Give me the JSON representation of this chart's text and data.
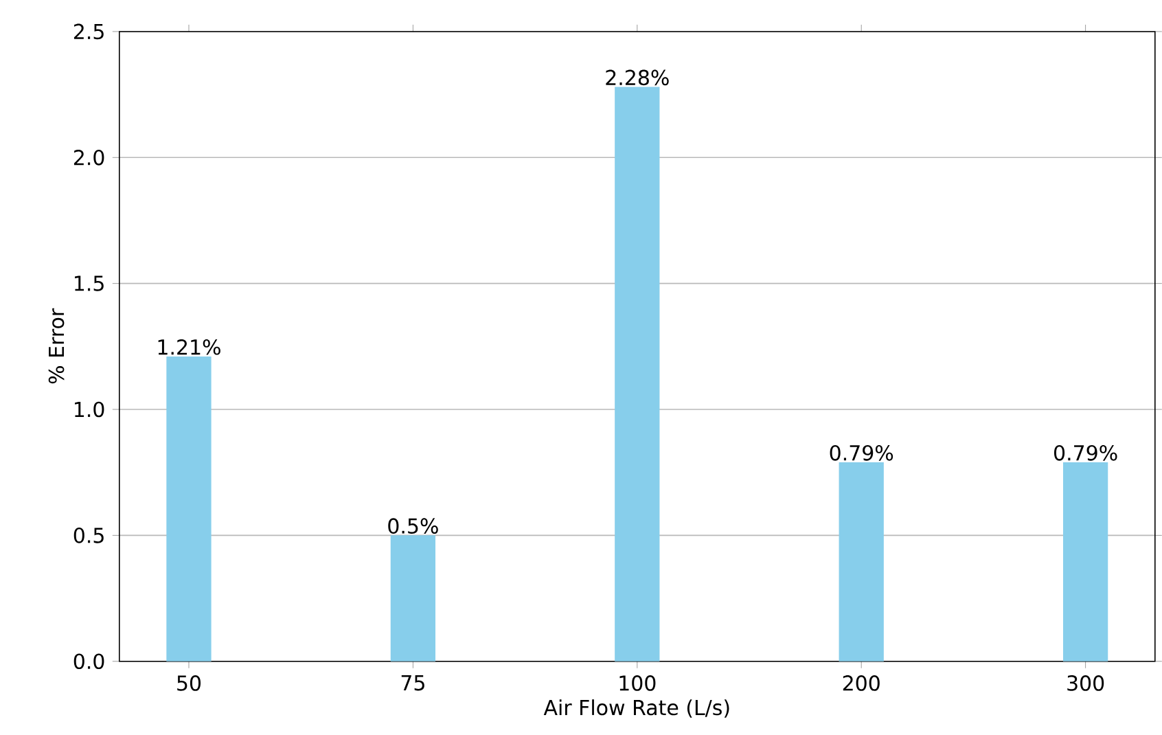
{
  "chart_data": {
    "type": "bar",
    "xlabel": "Air Flow Rate (L/s)",
    "ylabel": "% Error",
    "categories": [
      "50",
      "75",
      "100",
      "200",
      "300"
    ],
    "values": [
      1.21,
      0.5,
      2.28,
      0.79,
      0.79
    ],
    "value_labels": [
      "1.21%",
      "0.5%",
      "2.28%",
      "0.79%",
      "0.79%"
    ],
    "color": "#87ceeb",
    "ylim": [
      0,
      2.5
    ],
    "yticks": [
      {
        "value": 0,
        "label": "0.0"
      },
      0.5,
      {
        "value": 1,
        "label": "1.0"
      },
      1.5,
      {
        "value": 2,
        "label": "2.0"
      },
      2.5
    ],
    "grid": "y"
  }
}
